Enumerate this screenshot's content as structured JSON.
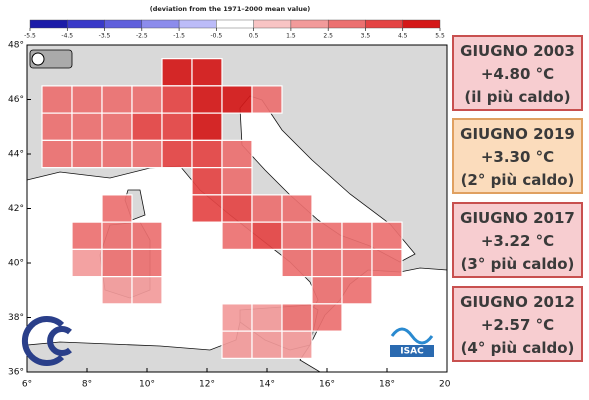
{
  "map": {
    "colorbar": {
      "title": "(deviation from the 1971–2000 mean value)",
      "ticks": [
        -5.5,
        -4.5,
        -3.5,
        -2.5,
        -1.5,
        -0.5,
        0.5,
        1.5,
        2.5,
        3.5,
        4.5,
        5.5
      ],
      "colors": [
        "#1c1ca8",
        "#3a3ac8",
        "#6060dc",
        "#8c8cec",
        "#bcbcf8",
        "#ffffff",
        "#f8c4c4",
        "#f29a9a",
        "#ec7070",
        "#e44444",
        "#d41818"
      ]
    },
    "lon_ticks": [
      {
        "value": 6,
        "label": "6°"
      },
      {
        "value": 8,
        "label": "8°"
      },
      {
        "value": 10,
        "label": "10°"
      },
      {
        "value": 12,
        "label": "12°"
      },
      {
        "value": 14,
        "label": "14°"
      },
      {
        "value": 16,
        "label": "16°"
      },
      {
        "value": 18,
        "label": "18°"
      },
      {
        "value": 20,
        "label": "20°"
      }
    ],
    "lat_ticks": [
      {
        "value": 48,
        "label": "48°"
      },
      {
        "value": 46,
        "label": "46°"
      },
      {
        "value": 44,
        "label": "44°"
      },
      {
        "value": 42,
        "label": "42°"
      },
      {
        "value": 40,
        "label": "40°"
      },
      {
        "value": 38,
        "label": "38°"
      },
      {
        "value": 36,
        "label": "36°"
      }
    ],
    "cells": [
      [
        11,
        47,
        4.8
      ],
      [
        12,
        47,
        4.9
      ],
      [
        7,
        46,
        2.8
      ],
      [
        8,
        46,
        3.0
      ],
      [
        9,
        46,
        3.2
      ],
      [
        10,
        46,
        3.4
      ],
      [
        11,
        46,
        4.5
      ],
      [
        12,
        46,
        5.0
      ],
      [
        13,
        46,
        4.6
      ],
      [
        14,
        46,
        3.2
      ],
      [
        7,
        45,
        2.9
      ],
      [
        8,
        45,
        3.1
      ],
      [
        9,
        45,
        3.3
      ],
      [
        10,
        45,
        3.6
      ],
      [
        11,
        45,
        4.3
      ],
      [
        12,
        45,
        5.1
      ],
      [
        7,
        44,
        2.8
      ],
      [
        8,
        44,
        2.9
      ],
      [
        9,
        44,
        3.0
      ],
      [
        10,
        44,
        3.2
      ],
      [
        11,
        44,
        3.6
      ],
      [
        12,
        44,
        3.9
      ],
      [
        13,
        44,
        3.5
      ],
      [
        12,
        43,
        3.6
      ],
      [
        13,
        43,
        3.4
      ],
      [
        9,
        42,
        2.9
      ],
      [
        12,
        42,
        3.7
      ],
      [
        13,
        42,
        3.6
      ],
      [
        14,
        42,
        3.5
      ],
      [
        15,
        42,
        3.3
      ],
      [
        8,
        41,
        2.6
      ],
      [
        9,
        41,
        2.8
      ],
      [
        10,
        41,
        2.7
      ],
      [
        13,
        41,
        3.4
      ],
      [
        14,
        41,
        3.6
      ],
      [
        15,
        41,
        3.3
      ],
      [
        16,
        41,
        3.1
      ],
      [
        17,
        41,
        2.9
      ],
      [
        18,
        41,
        2.7
      ],
      [
        8,
        40,
        2.5
      ],
      [
        9,
        40,
        2.7
      ],
      [
        10,
        40,
        2.6
      ],
      [
        15,
        40,
        3.2
      ],
      [
        16,
        40,
        3.0
      ],
      [
        17,
        40,
        2.8
      ],
      [
        18,
        40,
        2.6
      ],
      [
        9,
        39,
        2.4
      ],
      [
        10,
        39,
        2.5
      ],
      [
        16,
        39,
        2.8
      ],
      [
        17,
        39,
        2.6
      ],
      [
        13,
        38,
        2.2
      ],
      [
        14,
        38,
        2.4
      ],
      [
        15,
        38,
        2.6
      ],
      [
        16,
        38,
        2.7
      ],
      [
        13,
        37,
        2.3
      ],
      [
        14,
        37,
        2.5
      ],
      [
        15,
        37,
        2.4
      ]
    ]
  },
  "logos": {
    "isac": "ISAC"
  },
  "panels": [
    {
      "title": "GIUGNO 2003",
      "value": "+4.80 °C",
      "note": "(il più caldo)"
    },
    {
      "title": "GIUGNO 2019",
      "value": "+3.30 °C",
      "note": "(2° più caldo)"
    },
    {
      "title": "GIUGNO 2017",
      "value": "+3.22 °C",
      "note": "(3° più caldo)"
    },
    {
      "title": "GIUGNO 2012",
      "value": "+2.57 °C",
      "note": "(4° più caldo)"
    }
  ]
}
